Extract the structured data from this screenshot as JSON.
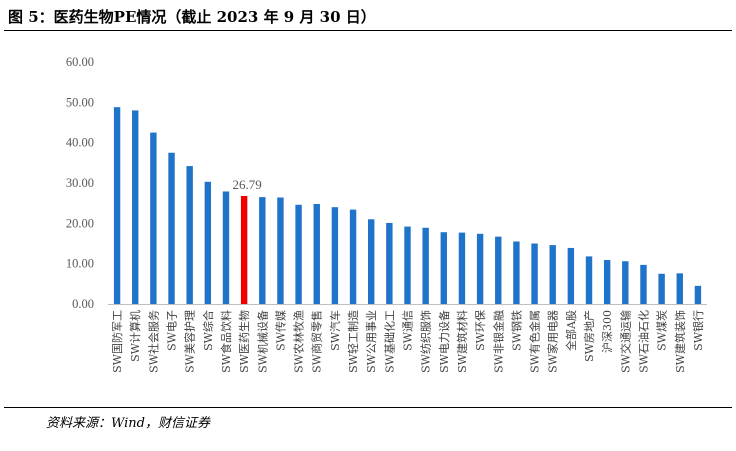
{
  "figure": {
    "title": "图 5：医药生物PE情况（截止 2023 年 9 月 30 日）",
    "source": "资料来源：Wind，财信证券"
  },
  "colors": {
    "bar": "#1F74C9",
    "highlight": "#F20000",
    "axis": "#BFBFBF"
  },
  "chart_data": {
    "type": "bar",
    "categories": [
      "SW国防军工",
      "SW计算机",
      "SW社会服务",
      "SW电子",
      "SW美容护理",
      "SW综合",
      "SW食品饮料",
      "SW医药生物",
      "SW机械设备",
      "SW传媒",
      "SW农林牧渔",
      "SW商贸零售",
      "SW汽车",
      "SW轻工制造",
      "SW公用事业",
      "SW基础化工",
      "SW通信",
      "SW纺织服饰",
      "SW电力设备",
      "SW建筑材料",
      "SW环保",
      "SW非银金融",
      "SW钢铁",
      "SW有色金属",
      "SW家用电器",
      "全部A股",
      "SW房地产",
      "沪深300",
      "SW交通运输",
      "SW石油石化",
      "SW煤炭",
      "SW建筑装饰",
      "SW银行"
    ],
    "values": [
      48.8,
      48.0,
      42.5,
      37.5,
      34.2,
      30.3,
      27.9,
      26.79,
      26.5,
      26.4,
      24.6,
      24.8,
      24.0,
      23.4,
      21.0,
      20.1,
      19.2,
      18.9,
      17.8,
      17.7,
      17.4,
      16.7,
      15.5,
      15.0,
      14.6,
      13.9,
      11.8,
      10.9,
      10.6,
      9.7,
      7.5,
      7.6,
      4.5
    ],
    "highlight_category": "SW医药生物",
    "data_labels": [
      {
        "category": "SW医药生物",
        "text": "26.79"
      }
    ],
    "yticks": [
      "0.00",
      "10.00",
      "20.00",
      "30.00",
      "40.00",
      "50.00",
      "60.00"
    ],
    "ylim": [
      0,
      60
    ],
    "xlabel": "",
    "ylabel": "",
    "legend": "none",
    "grid": false
  }
}
